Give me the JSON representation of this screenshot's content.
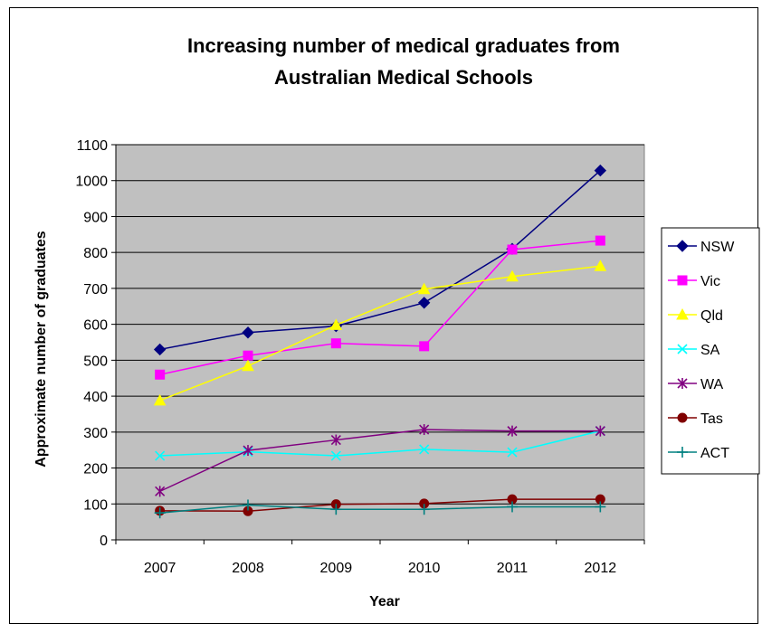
{
  "chart_data": {
    "type": "line",
    "title_lines": [
      "Increasing number of medical graduates from",
      "Australian Medical Schools"
    ],
    "xlabel": "Year",
    "ylabel": "Approximate number of graduates",
    "categories": [
      "2007",
      "2008",
      "2009",
      "2010",
      "2011",
      "2012"
    ],
    "ylim": [
      0,
      1100
    ],
    "yticks": [
      "0",
      "100",
      "200",
      "300",
      "400",
      "500",
      "600",
      "700",
      "800",
      "900",
      "1000",
      "1100"
    ],
    "grid": true,
    "legend_position": "right",
    "plot_background": "#c0c0c0",
    "series": [
      {
        "name": "NSW",
        "color": "#000080",
        "marker": "diamond",
        "values": [
          530,
          577,
          595,
          660,
          810,
          1028
        ]
      },
      {
        "name": "Vic",
        "color": "#ff00ff",
        "marker": "square",
        "values": [
          460,
          513,
          547,
          539,
          808,
          833
        ]
      },
      {
        "name": "Qld",
        "color": "#ffff00",
        "marker": "triangle",
        "values": [
          388,
          484,
          598,
          698,
          733,
          762
        ]
      },
      {
        "name": "SA",
        "color": "#00ffff",
        "marker": "x",
        "values": [
          234,
          245,
          234,
          252,
          244,
          303
        ]
      },
      {
        "name": "WA",
        "color": "#800080",
        "marker": "star",
        "values": [
          135,
          249,
          278,
          307,
          303,
          303
        ]
      },
      {
        "name": "Tas",
        "color": "#800000",
        "marker": "circle",
        "values": [
          81,
          80,
          99,
          101,
          113,
          113
        ]
      },
      {
        "name": "ACT",
        "color": "#008080",
        "marker": "plus",
        "values": [
          75,
          97,
          85,
          85,
          92,
          92
        ]
      }
    ]
  }
}
